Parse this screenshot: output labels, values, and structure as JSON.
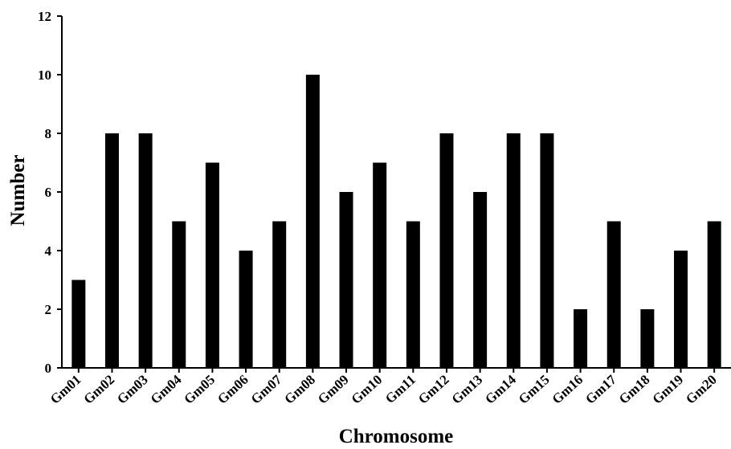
{
  "chart_data": {
    "type": "bar",
    "categories": [
      "Gm01",
      "Gm02",
      "Gm03",
      "Gm04",
      "Gm05",
      "Gm06",
      "Gm07",
      "Gm08",
      "Gm09",
      "Gm10",
      "Gm11",
      "Gm12",
      "Gm13",
      "Gm14",
      "Gm15",
      "Gm16",
      "Gm17",
      "Gm18",
      "Gm19",
      "Gm20"
    ],
    "values": [
      3,
      8,
      8,
      5,
      7,
      4,
      5,
      10,
      6,
      7,
      5,
      8,
      6,
      8,
      8,
      2,
      5,
      2,
      4,
      5
    ],
    "title": "",
    "xlabel": "Chromosome",
    "ylabel": "Number",
    "ylim": [
      0,
      12
    ],
    "yticks": [
      "0",
      "2",
      "4",
      "6",
      "8",
      "10",
      "12"
    ],
    "grid": false,
    "legend": "none",
    "bar_color": "#000000"
  }
}
